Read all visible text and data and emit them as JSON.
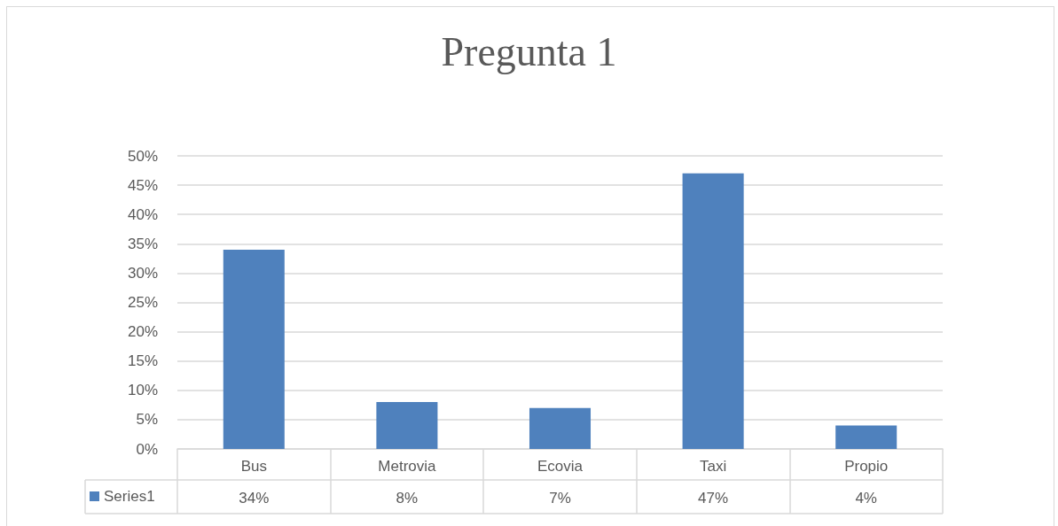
{
  "chart_data": {
    "type": "bar",
    "title": "Pregunta 1",
    "categories": [
      "Bus",
      "Metrovia",
      "Ecovia",
      "Taxi",
      "Propio"
    ],
    "series": [
      {
        "name": "Series1",
        "color": "#4f81bd",
        "values": [
          34,
          8,
          7,
          47,
          4
        ],
        "value_labels": [
          "34%",
          "8%",
          "7%",
          "47%",
          "4%"
        ]
      }
    ],
    "ylim": [
      0,
      50
    ],
    "yticks": [
      {
        "value": 0,
        "label": "0%"
      },
      {
        "value": 5,
        "label": "5%"
      },
      {
        "value": 10,
        "label": "10%"
      },
      {
        "value": 15,
        "label": "15%"
      },
      {
        "value": 20,
        "label": "20%"
      },
      {
        "value": 25,
        "label": "25%"
      },
      {
        "value": 30,
        "label": "30%"
      },
      {
        "value": 35,
        "label": "35%"
      },
      {
        "value": 40,
        "label": "40%"
      },
      {
        "value": 45,
        "label": "45%"
      },
      {
        "value": 50,
        "label": "50%"
      }
    ],
    "grid": "y",
    "legend": "bottom left"
  }
}
